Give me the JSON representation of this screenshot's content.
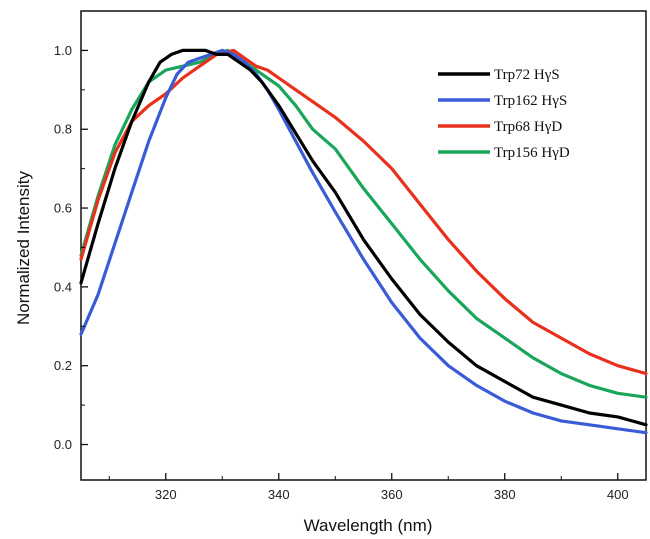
{
  "chart_data": {
    "type": "line",
    "title": "",
    "xlabel": "Wavelength (nm)",
    "ylabel": "Normalized Intensity",
    "xlim": [
      305,
      405
    ],
    "ylim": [
      -0.09,
      1.1
    ],
    "x_ticks": [
      320,
      340,
      360,
      380,
      400
    ],
    "y_ticks": [
      0.0,
      0.2,
      0.4,
      0.6,
      0.8,
      1.0
    ],
    "x_tick_labels": [
      "320",
      "340",
      "360",
      "380",
      "400"
    ],
    "y_tick_labels": [
      "0.0",
      "0.2",
      "0.4",
      "0.6",
      "0.8",
      "1.0"
    ],
    "grid": false,
    "legend_position": "top-right",
    "series": [
      {
        "name": "Trp72 HγS",
        "color": "#000000",
        "x": [
          305,
          308,
          311,
          314,
          317,
          319,
          321,
          323,
          325,
          327,
          329,
          331,
          333,
          335,
          337,
          340,
          343,
          346,
          350,
          355,
          360,
          365,
          370,
          375,
          380,
          385,
          390,
          395,
          400,
          405
        ],
        "y": [
          0.41,
          0.56,
          0.7,
          0.82,
          0.92,
          0.97,
          0.99,
          1.0,
          1.0,
          1.0,
          0.99,
          0.99,
          0.97,
          0.95,
          0.92,
          0.86,
          0.79,
          0.72,
          0.64,
          0.52,
          0.42,
          0.33,
          0.26,
          0.2,
          0.16,
          0.12,
          0.1,
          0.08,
          0.07,
          0.05
        ]
      },
      {
        "name": "Trp162 HγS",
        "color": "#3a5bd8",
        "x": [
          305,
          308,
          311,
          314,
          317,
          320,
          322,
          324,
          326,
          328,
          330,
          332,
          334,
          336,
          338,
          340,
          343,
          346,
          350,
          355,
          360,
          365,
          370,
          375,
          380,
          385,
          390,
          395,
          400,
          405
        ],
        "y": [
          0.28,
          0.38,
          0.51,
          0.64,
          0.77,
          0.88,
          0.94,
          0.97,
          0.98,
          0.99,
          1.0,
          0.99,
          0.97,
          0.94,
          0.9,
          0.85,
          0.77,
          0.69,
          0.59,
          0.47,
          0.36,
          0.27,
          0.2,
          0.15,
          0.11,
          0.08,
          0.06,
          0.05,
          0.04,
          0.03
        ]
      },
      {
        "name": "Trp68 HγD",
        "color": "#e8301c",
        "x": [
          305,
          308,
          311,
          314,
          317,
          320,
          323,
          326,
          329,
          332,
          334,
          336,
          338,
          340,
          343,
          346,
          350,
          355,
          360,
          365,
          370,
          375,
          380,
          385,
          390,
          395,
          400,
          405
        ],
        "y": [
          0.47,
          0.62,
          0.74,
          0.82,
          0.86,
          0.89,
          0.93,
          0.96,
          0.99,
          1.0,
          0.98,
          0.96,
          0.95,
          0.93,
          0.9,
          0.87,
          0.83,
          0.77,
          0.7,
          0.61,
          0.52,
          0.44,
          0.37,
          0.31,
          0.27,
          0.23,
          0.2,
          0.18
        ]
      },
      {
        "name": "Trp156 HγD",
        "color": "#1aa65a",
        "x": [
          305,
          308,
          311,
          314,
          317,
          320,
          323,
          326,
          329,
          331,
          334,
          337,
          340,
          343,
          346,
          350,
          355,
          360,
          365,
          370,
          375,
          380,
          385,
          390,
          395,
          400,
          405
        ],
        "y": [
          0.48,
          0.63,
          0.76,
          0.85,
          0.92,
          0.95,
          0.96,
          0.97,
          0.99,
          1.0,
          0.97,
          0.94,
          0.91,
          0.86,
          0.8,
          0.75,
          0.65,
          0.56,
          0.47,
          0.39,
          0.32,
          0.27,
          0.22,
          0.18,
          0.15,
          0.13,
          0.12
        ]
      }
    ]
  }
}
